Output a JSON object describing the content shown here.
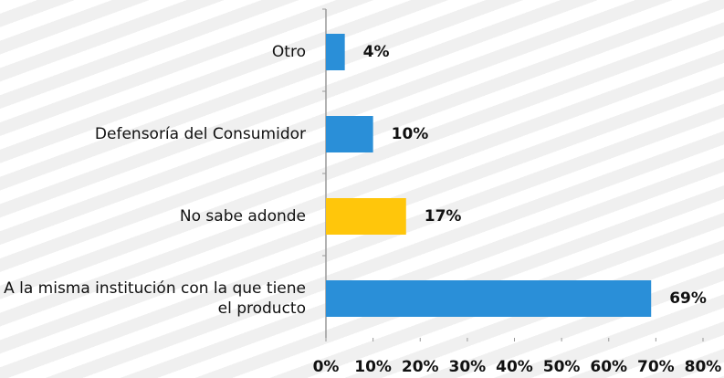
{
  "chart_data": {
    "type": "bar",
    "orientation": "horizontal",
    "categories": [
      "Otro",
      "Defensoría del Consumidor",
      "No sabe adonde",
      "A la misma institución con la que tiene el producto"
    ],
    "values": [
      4,
      10,
      17,
      69
    ],
    "value_labels": [
      "4%",
      "10%",
      "17%",
      "69%"
    ],
    "colors": [
      "#2a8fd8",
      "#2a8fd8",
      "#ffc60b",
      "#2a8fd8"
    ],
    "xlim": [
      0,
      80
    ],
    "xticks": [
      {
        "value": 0,
        "label": "0%"
      },
      {
        "value": 10,
        "label": "10%"
      },
      {
        "value": 20,
        "label": "20%"
      },
      {
        "value": 30,
        "label": "30%"
      },
      {
        "value": 40,
        "label": "40%"
      },
      {
        "value": 50,
        "label": "50%"
      },
      {
        "value": 60,
        "label": "60%"
      },
      {
        "value": 70,
        "label": "70%"
      },
      {
        "value": 80,
        "label": "80%"
      }
    ],
    "grid": false
  }
}
